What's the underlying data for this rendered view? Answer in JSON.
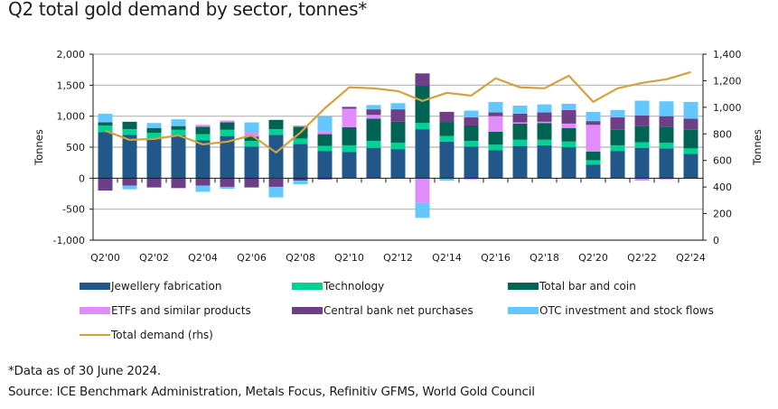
{
  "title": "Q2 total gold demand by sector, tonnes*",
  "footnote": "*Data as of 30 June 2024.",
  "source": "Source: ICE Benchmark Administration, Metals Focus, Refinitiv GFMS, World Gold Council",
  "chart_data": {
    "type": "bar",
    "subtype": "stacked-bar-with-line",
    "title": "Q2 total gold demand by sector, tonnes*",
    "xlabel": "",
    "ylabel": "Tonnes",
    "y2label": "Tonnes",
    "ylim": [
      -1000,
      2000
    ],
    "y2lim": [
      0,
      1400
    ],
    "yticks": [
      "2,000",
      "1,500",
      "1,000",
      "500",
      "0",
      "-500",
      "-1,000"
    ],
    "ytick_values": [
      2000,
      1500,
      1000,
      500,
      0,
      -500,
      -1000
    ],
    "y2ticks": [
      "1,400",
      "1,200",
      "1,000",
      "800",
      "600",
      "400",
      "200",
      "0"
    ],
    "y2tick_values": [
      1400,
      1200,
      1000,
      800,
      600,
      400,
      200,
      0
    ],
    "grid": true,
    "legend_position": "bottom",
    "categories": [
      "Q2'00",
      "Q2'01",
      "Q2'02",
      "Q2'03",
      "Q2'04",
      "Q2'05",
      "Q2'06",
      "Q2'07",
      "Q2'08",
      "Q2'09",
      "Q2'10",
      "Q2'11",
      "Q2'12",
      "Q2'13",
      "Q2'14",
      "Q2'15",
      "Q2'16",
      "Q2'17",
      "Q2'18",
      "Q2'19",
      "Q2'20",
      "Q2'21",
      "Q2'22",
      "Q2'23",
      "Q2'24"
    ],
    "xtick_labels": [
      "Q2'00",
      "Q2'02",
      "Q2'04",
      "Q2'06",
      "Q2'08",
      "Q2'10",
      "Q2'12",
      "Q2'14",
      "Q2'16",
      "Q2'18",
      "Q2'20",
      "Q2'22",
      "Q2'24"
    ],
    "series": [
      {
        "name": "Jewellery fabrication",
        "color": "#22578a",
        "type": "bar",
        "values": [
          740,
          700,
          640,
          690,
          610,
          680,
          510,
          700,
          550,
          440,
          420,
          490,
          470,
          790,
          590,
          510,
          450,
          520,
          530,
          500,
          220,
          440,
          490,
          480,
          390
        ]
      },
      {
        "name": "Technology",
        "color": "#00d294",
        "type": "bar",
        "values": [
          110,
          90,
          90,
          90,
          100,
          100,
          90,
          90,
          90,
          80,
          110,
          110,
          100,
          100,
          90,
          90,
          90,
          100,
          90,
          90,
          70,
          90,
          90,
          90,
          90
        ]
      },
      {
        "name": "Total bar and coin",
        "color": "#006455",
        "type": "bar",
        "values": [
          50,
          120,
          80,
          60,
          120,
          120,
          70,
          150,
          190,
          190,
          290,
          360,
          340,
          600,
          220,
          250,
          210,
          260,
          270,
          220,
          140,
          250,
          260,
          260,
          300
        ]
      },
      {
        "name": "ETFs and similar products",
        "color": "#e08cf9",
        "type": "bar",
        "values": [
          0,
          0,
          0,
          0,
          30,
          30,
          70,
          -10,
          20,
          50,
          300,
          60,
          0,
          -400,
          -10,
          -20,
          250,
          20,
          20,
          70,
          430,
          0,
          -40,
          -20,
          -10
        ]
      },
      {
        "name": "Central bank net purchases",
        "color": "#6c3f86",
        "type": "bar",
        "values": [
          -200,
          -120,
          -150,
          -160,
          -120,
          -140,
          -150,
          -130,
          -40,
          -20,
          30,
          90,
          200,
          200,
          170,
          130,
          60,
          140,
          150,
          220,
          60,
          200,
          170,
          170,
          180
        ]
      },
      {
        "name": "OTC investment and stock flows",
        "color": "#64c8ff",
        "type": "bar",
        "values": [
          140,
          -60,
          80,
          110,
          -100,
          -30,
          160,
          -170,
          -60,
          240,
          0,
          70,
          100,
          -240,
          -30,
          110,
          170,
          130,
          130,
          100,
          150,
          120,
          240,
          240,
          270
        ]
      },
      {
        "name": "Total demand (rhs)",
        "color": "#d4a23c",
        "type": "line",
        "axis": "right",
        "values": [
          823,
          755,
          762,
          789,
          721,
          741,
          789,
          660,
          810,
          993,
          1150,
          1143,
          1122,
          1048,
          1109,
          1088,
          1218,
          1150,
          1143,
          1238,
          1041,
          1143,
          1184,
          1211,
          1265
        ]
      }
    ]
  },
  "legend": [
    {
      "label": "Jewellery fabrication",
      "kind": "swatch",
      "color": "#22578a"
    },
    {
      "label": "Technology",
      "kind": "swatch",
      "color": "#00d294"
    },
    {
      "label": "Total bar and coin",
      "kind": "swatch",
      "color": "#006455"
    },
    {
      "label": "ETFs and similar products",
      "kind": "swatch",
      "color": "#e08cf9"
    },
    {
      "label": "Central bank net purchases",
      "kind": "swatch",
      "color": "#6c3f86"
    },
    {
      "label": "OTC investment and stock flows",
      "kind": "swatch",
      "color": "#64c8ff"
    },
    {
      "label": "Total demand (rhs)",
      "kind": "line",
      "color": "#d4a23c"
    }
  ]
}
